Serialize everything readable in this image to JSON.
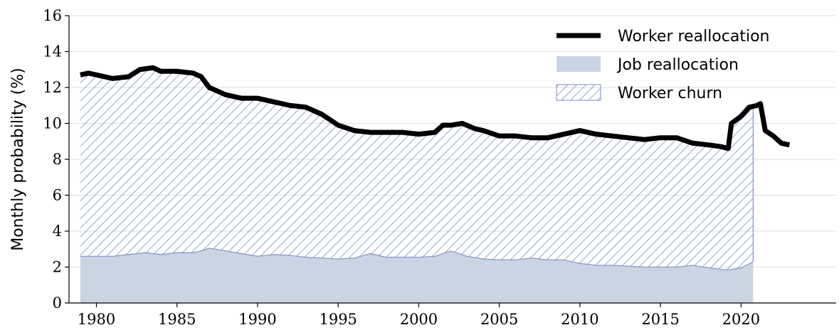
{
  "chart_data": {
    "type": "area",
    "y_label": "Monthly probability (%)",
    "xlim": [
      1978.3,
      2025.9
    ],
    "ylim": [
      0,
      16
    ],
    "xticks": [
      1980,
      1985,
      1990,
      1995,
      2000,
      2005,
      2010,
      2015,
      2020
    ],
    "yticks": [
      0,
      2,
      4,
      6,
      8,
      10,
      12,
      14,
      16
    ],
    "grid": true,
    "legend": "upper right",
    "series": [
      {
        "name": "Worker reallocation",
        "style": "line",
        "color": "#000000",
        "x": [
          1979,
          1979.5,
          1980,
          1981,
          1982,
          1982.7,
          1983.5,
          1984,
          1985,
          1986,
          1986.5,
          1987,
          1988,
          1989,
          1990,
          1991,
          1992,
          1993,
          1994,
          1995,
          1996,
          1997,
          1998,
          1999,
          2000,
          2001,
          2001.5,
          2002,
          2002.7,
          2003.5,
          2004,
          2005,
          2006,
          2007,
          2008,
          2009,
          2010,
          2011,
          2012,
          2013,
          2014,
          2015,
          2016,
          2017,
          2018,
          2018.8,
          2019.2,
          2019.4,
          2020,
          2020.5,
          2021,
          2021.2,
          2021.5,
          2022,
          2022.5,
          2023
        ],
        "values": [
          12.7,
          12.8,
          12.7,
          12.5,
          12.6,
          13.0,
          13.1,
          12.9,
          12.9,
          12.8,
          12.6,
          12.0,
          11.6,
          11.4,
          11.4,
          11.2,
          11.0,
          10.9,
          10.5,
          9.9,
          9.6,
          9.5,
          9.5,
          9.5,
          9.4,
          9.5,
          9.9,
          9.9,
          10.0,
          9.7,
          9.6,
          9.3,
          9.3,
          9.2,
          9.2,
          9.4,
          9.6,
          9.4,
          9.3,
          9.2,
          9.1,
          9.2,
          9.2,
          8.9,
          8.8,
          8.7,
          8.6,
          10.0,
          10.4,
          10.9,
          11.0,
          11.1,
          9.6,
          9.3,
          8.9,
          8.8
        ]
      },
      {
        "name": "Job reallocation",
        "style": "fill",
        "color": "#cbd4e3",
        "x": [
          1979,
          1980,
          1981,
          1982,
          1983,
          1984,
          1985,
          1986,
          1986.5,
          1987,
          1988,
          1989,
          1990,
          1991,
          1992,
          1993,
          1994,
          1995,
          1996,
          1997,
          1998,
          1999,
          2000,
          2001,
          2002,
          2003,
          2004,
          2005,
          2006,
          2007,
          2008,
          2009,
          2010,
          2011,
          2012,
          2013,
          2014,
          2015,
          2016,
          2017,
          2018,
          2019,
          2019.2,
          2019.4,
          2020,
          2020.75
        ],
        "values": [
          2.6,
          2.6,
          2.6,
          2.7,
          2.8,
          2.7,
          2.8,
          2.8,
          2.9,
          3.05,
          2.9,
          2.75,
          2.6,
          2.7,
          2.65,
          2.55,
          2.5,
          2.45,
          2.5,
          2.75,
          2.55,
          2.55,
          2.55,
          2.6,
          2.9,
          2.6,
          2.45,
          2.4,
          2.4,
          2.5,
          2.4,
          2.4,
          2.2,
          2.1,
          2.1,
          2.05,
          2.0,
          2.0,
          2.0,
          2.1,
          1.95,
          1.85,
          1.85,
          1.87,
          1.95,
          2.3
        ]
      },
      {
        "name": "Worker churn",
        "style": "hatch",
        "stack": true,
        "color": "#7d8ec6",
        "x": [
          1979,
          1980,
          1981,
          1982,
          1983,
          1984,
          1985,
          1986,
          1986.5,
          1987,
          1988,
          1989,
          1990,
          1991,
          1992,
          1993,
          1994,
          1995,
          1996,
          1997,
          1998,
          1999,
          2000,
          2001,
          2002,
          2003,
          2004,
          2005,
          2006,
          2007,
          2008,
          2009,
          2010,
          2011,
          2012,
          2013,
          2014,
          2015,
          2016,
          2017,
          2018,
          2019,
          2019.2,
          2019.4,
          2020,
          2020.75
        ],
        "values": [
          10.1,
          10.1,
          9.9,
          9.9,
          10.2,
          10.2,
          10.1,
          10.0,
          9.7,
          8.95,
          8.7,
          8.65,
          8.8,
          8.5,
          8.35,
          8.35,
          8.0,
          7.45,
          7.1,
          6.75,
          6.95,
          6.95,
          6.85,
          6.9,
          7.0,
          7.3,
          7.15,
          6.9,
          6.9,
          6.7,
          6.8,
          7.0,
          7.4,
          7.3,
          7.2,
          7.15,
          7.1,
          7.2,
          7.2,
          6.8,
          6.85,
          6.85,
          6.75,
          8.13,
          8.45,
          8.6
        ]
      }
    ]
  }
}
